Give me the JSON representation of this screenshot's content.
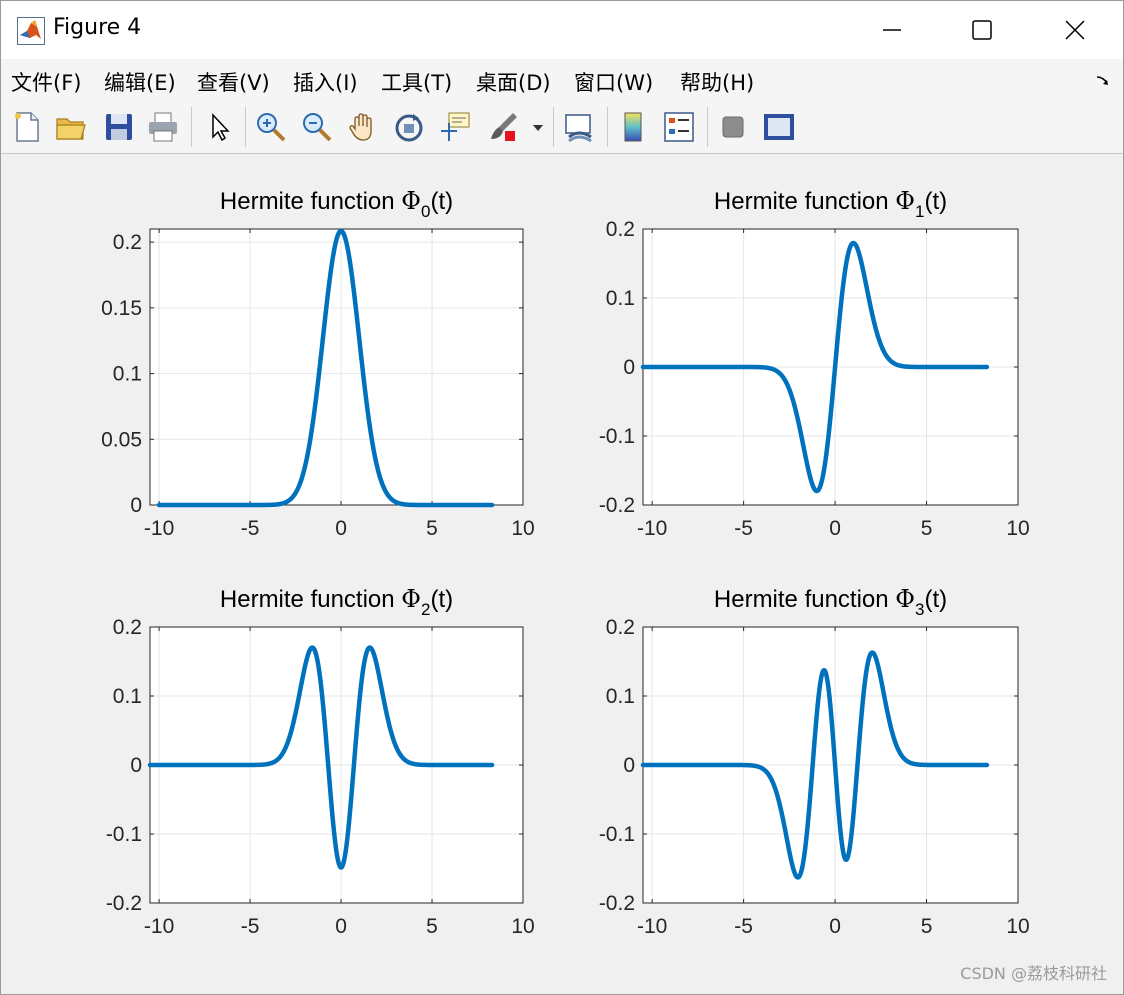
{
  "window": {
    "title": "Figure 4"
  },
  "menu": {
    "items": [
      "文件(F)",
      "编辑(E)",
      "查看(V)",
      "插入(I)",
      "工具(T)",
      "桌面(D)",
      "窗口(W)",
      "帮助(H)"
    ]
  },
  "toolbar": {
    "icons": [
      "new-figure-icon",
      "open-file-icon",
      "save-icon",
      "print-icon",
      "select-arrow-icon",
      "zoom-in-icon",
      "zoom-out-icon",
      "pan-hand-icon",
      "rotate-3d-icon",
      "data-cursor-icon",
      "brush-icon",
      "link-plot-icon",
      "colorbar-icon",
      "legend-icon",
      "hide-plot-tools-icon",
      "show-plot-tools-icon"
    ]
  },
  "watermark": "CSDN @荔枝科研社",
  "colors": {
    "line": "#0072bd",
    "grid": "#e6e6e6",
    "axes_bg": "#ffffff",
    "figure_bg": "#f0f0f0"
  },
  "chart_data": [
    {
      "type": "line",
      "title_prefix": "Hermite function ",
      "title_symbol": "Φ",
      "title_subscript": "0",
      "title_suffix": "(t)",
      "order": 0,
      "x_range": [
        -10,
        8.3
      ],
      "xlim": [
        -10.5,
        10
      ],
      "ylim": [
        0,
        0.21
      ],
      "xticks": [
        -10,
        -5,
        0,
        5,
        10
      ],
      "xtick_labels": [
        "-10",
        "-5",
        "0",
        "5",
        "10"
      ],
      "yticks": [
        0,
        0.05,
        0.1,
        0.15,
        0.2
      ],
      "ytick_labels": [
        "0",
        "0.05",
        "0.1",
        "0.15",
        "0.2"
      ],
      "x": [
        -10,
        -4,
        -3,
        -2,
        -1.5,
        -1,
        -0.5,
        0,
        0.5,
        1,
        1.5,
        2,
        3,
        4,
        8.3
      ],
      "y": [
        0,
        0.0007,
        0.0065,
        0.0381,
        0.0718,
        0.1129,
        0.1614,
        0.2085,
        0.1614,
        0.1129,
        0.0718,
        0.0381,
        0.0065,
        0.0007,
        0
      ],
      "grid": true
    },
    {
      "type": "line",
      "title_prefix": "Hermite function ",
      "title_symbol": "Φ",
      "title_subscript": "1",
      "title_suffix": "(t)",
      "order": 1,
      "x_range": [
        -10.5,
        8.3
      ],
      "xlim": [
        -10.5,
        10
      ],
      "ylim": [
        -0.2,
        0.2
      ],
      "xticks": [
        -10,
        -5,
        0,
        5,
        10
      ],
      "xtick_labels": [
        "-10",
        "-5",
        "0",
        "5",
        "10"
      ],
      "yticks": [
        -0.2,
        -0.1,
        0,
        0.1,
        0.2
      ],
      "ytick_labels": [
        "-0.2",
        "-0.1",
        "0",
        "0.1",
        "0.2"
      ],
      "x": [
        -10.5,
        -4,
        -3,
        -2,
        -1,
        -0.5,
        0,
        0.5,
        1,
        2,
        3,
        4,
        8.3
      ],
      "y": [
        0,
        -0.0019,
        -0.0183,
        -0.1079,
        -0.1797,
        -0.1318,
        0,
        0.1318,
        0.1797,
        0.1079,
        0.0183,
        0.0019,
        0
      ],
      "grid": true
    },
    {
      "type": "line",
      "title_prefix": "Hermite function ",
      "title_symbol": "Φ",
      "title_subscript": "2",
      "title_suffix": "(t)",
      "order": 2,
      "x_range": [
        -10.5,
        8.3
      ],
      "xlim": [
        -10.5,
        10
      ],
      "ylim": [
        -0.2,
        0.2
      ],
      "xticks": [
        -10,
        -5,
        0,
        5,
        10
      ],
      "xtick_labels": [
        "-10",
        "-5",
        "0",
        "5",
        "10"
      ],
      "yticks": [
        -0.2,
        -0.1,
        0,
        0.1,
        0.2
      ],
      "ytick_labels": [
        "-0.2",
        "-0.1",
        "0",
        "0.1",
        "0.2"
      ],
      "x": [
        -10.5,
        -4,
        -3,
        -2,
        -1.7,
        -1,
        -0.5,
        0,
        0.5,
        1,
        1.7,
        2,
        3,
        4,
        8.3
      ],
      "y": [
        0,
        0.0035,
        0.0271,
        0.1119,
        0.1702,
        0.0806,
        -0.104,
        -0.1474,
        -0.104,
        0.0806,
        0.1702,
        0.1119,
        0.0271,
        0.0035,
        0
      ],
      "grid": true
    },
    {
      "type": "line",
      "title_prefix": "Hermite function ",
      "title_symbol": "Φ",
      "title_subscript": "3",
      "title_suffix": "(t)",
      "order": 3,
      "x_range": [
        -10.5,
        8.3
      ],
      "xlim": [
        -10.5,
        10
      ],
      "ylim": [
        -0.2,
        0.2
      ],
      "xticks": [
        -10,
        -5,
        0,
        5,
        10
      ],
      "xtick_labels": [
        "-10",
        "-5",
        "0",
        "5",
        "10"
      ],
      "yticks": [
        -0.2,
        -0.1,
        0,
        0.1,
        0.2
      ],
      "ytick_labels": [
        "-0.2",
        "-0.1",
        "0",
        "0.1",
        "0.2"
      ],
      "x": [
        -10.5,
        -4.5,
        -3,
        -2.1,
        -1.5,
        -0.7,
        0,
        0.7,
        1.5,
        2.1,
        3,
        4.5,
        8.3
      ],
      "y": [
        0,
        -0.0008,
        -0.0463,
        -0.163,
        -0.0925,
        0.137,
        0,
        -0.137,
        0.0925,
        0.163,
        0.0463,
        0.0008,
        0
      ],
      "grid": true
    }
  ]
}
